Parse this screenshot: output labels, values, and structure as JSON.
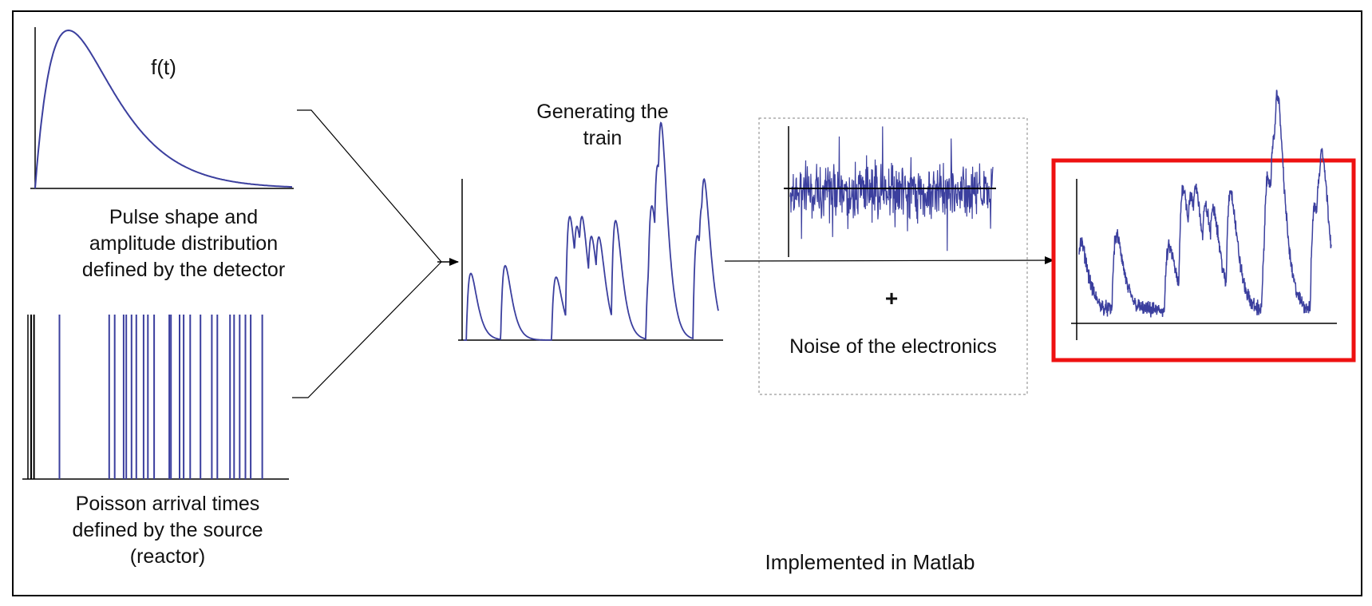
{
  "labels": {
    "pulse_function": "f(t)",
    "pulse_caption": [
      "Pulse shape and",
      "amplitude distribution",
      "defined by the detector"
    ],
    "poisson_caption": [
      "Poisson arrival times",
      "defined by the source",
      "(reactor)"
    ],
    "train_title": [
      "Generating the",
      "train"
    ],
    "plus": "+",
    "noise_caption": "Noise of the electronics",
    "footer": "Implemented in Matlab"
  },
  "colors": {
    "signal": "#3b3f9e",
    "axis": "#000000",
    "frame": "#000000",
    "highlight": "#ee1111",
    "dashed_box": "#9a9a9a"
  },
  "poisson_arrivals": [
    0.0,
    0.012,
    0.118,
    0.325,
    0.348,
    0.385,
    0.396,
    0.418,
    0.438,
    0.468,
    0.486,
    0.512,
    0.575,
    0.582,
    0.618,
    0.635,
    0.662,
    0.705,
    0.752,
    0.775,
    0.828,
    0.845,
    0.868,
    0.892,
    0.914,
    0.962
  ],
  "train_pulses": [
    {
      "t": 0.01,
      "a": 0.36
    },
    {
      "t": 0.145,
      "a": 0.4
    },
    {
      "t": 0.345,
      "a": 0.34
    },
    {
      "t": 0.4,
      "a": 0.6
    },
    {
      "t": 0.435,
      "a": 0.3
    },
    {
      "t": 0.455,
      "a": 0.28
    },
    {
      "t": 0.49,
      "a": 0.33
    },
    {
      "t": 0.52,
      "a": 0.3
    },
    {
      "t": 0.58,
      "a": 0.58
    },
    {
      "t": 0.715,
      "a": 0.4
    },
    {
      "t": 0.725,
      "a": 0.35
    },
    {
      "t": 0.75,
      "a": 0.52
    },
    {
      "t": 0.765,
      "a": 0.45
    },
    {
      "t": 0.9,
      "a": 0.56
    },
    {
      "t": 0.925,
      "a": 0.34
    },
    {
      "t": 0.935,
      "a": 0.25
    }
  ]
}
